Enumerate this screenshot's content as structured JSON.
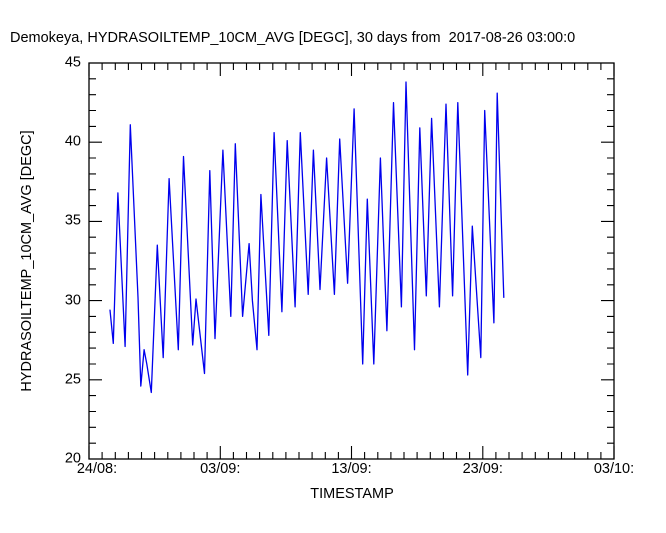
{
  "window": {
    "background": "#ffffff",
    "text_color": "#000000"
  },
  "chart_data": {
    "type": "line",
    "title": "Demokeya, HYDRASOILTEMP_10CM_AVG [DEGC], 30 days from  2017-08-26 03:00:0",
    "xlabel": "TIMESTAMP",
    "ylabel": "HYDRASOILTEMP_10CM_AVG [DEGC]",
    "grid": false,
    "legend": "none",
    "line_color": "#0000ee",
    "axis_color": "#000000",
    "x_axis": {
      "min": 0,
      "max": 40,
      "unit": "days from axis origin (24/08)",
      "minor_step": 1,
      "major_step": 10,
      "major_tick_labels": [
        "24/08:",
        "03/09:",
        "13/09:",
        "23/09:",
        "03/10:"
      ]
    },
    "y_axis": {
      "min": 20,
      "max": 45,
      "minor_step": 1,
      "major_step": 5,
      "major_tick_labels": [
        "20",
        "25",
        "30",
        "35",
        "40",
        "45"
      ]
    },
    "series": [
      {
        "name": "HYDRASOILTEMP_10CM_AVG",
        "points_day_degc": [
          [
            1.6,
            29.4
          ],
          [
            1.85,
            27.3
          ],
          [
            2.2,
            36.8
          ],
          [
            2.75,
            27.1
          ],
          [
            3.15,
            41.1
          ],
          [
            3.73,
            30.2
          ],
          [
            3.95,
            24.6
          ],
          [
            4.2,
            26.9
          ],
          [
            4.4,
            26.0
          ],
          [
            4.75,
            24.2
          ],
          [
            5.2,
            33.5
          ],
          [
            5.65,
            26.4
          ],
          [
            6.1,
            37.7
          ],
          [
            6.8,
            26.9
          ],
          [
            7.2,
            39.1
          ],
          [
            7.9,
            27.2
          ],
          [
            8.15,
            30.1
          ],
          [
            8.8,
            25.4
          ],
          [
            9.2,
            38.2
          ],
          [
            9.6,
            27.6
          ],
          [
            10.2,
            39.5
          ],
          [
            10.8,
            29.0
          ],
          [
            11.15,
            39.9
          ],
          [
            11.7,
            29.0
          ],
          [
            12.2,
            33.6
          ],
          [
            12.45,
            30.0
          ],
          [
            12.8,
            26.9
          ],
          [
            13.1,
            36.7
          ],
          [
            13.7,
            27.8
          ],
          [
            14.1,
            40.6
          ],
          [
            14.7,
            29.3
          ],
          [
            15.1,
            40.1
          ],
          [
            15.7,
            29.6
          ],
          [
            16.1,
            40.6
          ],
          [
            16.7,
            30.4
          ],
          [
            17.1,
            39.5
          ],
          [
            17.6,
            30.7
          ],
          [
            18.1,
            39.0
          ],
          [
            18.7,
            30.4
          ],
          [
            19.1,
            40.2
          ],
          [
            19.7,
            31.1
          ],
          [
            20.2,
            42.1
          ],
          [
            20.85,
            26.0
          ],
          [
            21.2,
            36.4
          ],
          [
            21.7,
            26.0
          ],
          [
            22.2,
            39.0
          ],
          [
            22.7,
            28.1
          ],
          [
            23.2,
            42.5
          ],
          [
            23.8,
            29.6
          ],
          [
            24.15,
            43.8
          ],
          [
            24.8,
            26.9
          ],
          [
            25.2,
            40.9
          ],
          [
            25.7,
            30.3
          ],
          [
            26.1,
            41.5
          ],
          [
            26.7,
            29.6
          ],
          [
            27.2,
            42.4
          ],
          [
            27.7,
            30.3
          ],
          [
            28.1,
            42.5
          ],
          [
            28.85,
            25.3
          ],
          [
            29.2,
            34.7
          ],
          [
            29.85,
            26.4
          ],
          [
            30.15,
            42.0
          ],
          [
            30.85,
            28.6
          ],
          [
            31.1,
            43.1
          ],
          [
            31.6,
            30.2
          ]
        ]
      }
    ]
  }
}
